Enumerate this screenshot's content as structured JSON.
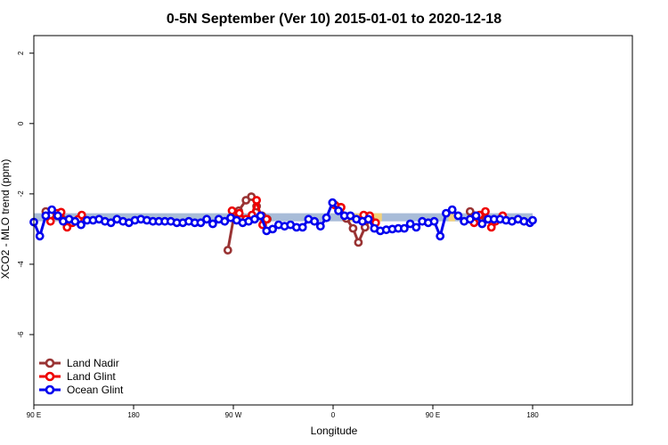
{
  "chart_data": {
    "type": "line",
    "title": "0-5N September (Ver 10)   2015-01-01 to 2020-12-18",
    "xlabel": "Longitude",
    "ylabel": "XCO2 - MLO trend (ppm)",
    "xlim": [
      -90,
      180
    ],
    "ylim": [
      -8,
      2.5
    ],
    "x_ticks": [
      {
        "value": -90,
        "label": "90 E"
      },
      {
        "value": -45,
        "label": "180"
      },
      {
        "value": 0,
        "label": "90 W"
      },
      {
        "value": 45,
        "label": "0"
      },
      {
        "value": 90,
        "label": "90 E"
      },
      {
        "value": 135,
        "label": "180"
      }
    ],
    "y_ticks": [
      {
        "value": 2,
        "label": "2"
      },
      {
        "value": 0,
        "label": "0"
      },
      {
        "value": -2,
        "label": "-2"
      },
      {
        "value": -4,
        "label": "-4"
      },
      {
        "value": -6,
        "label": "-6"
      }
    ],
    "grid": false,
    "legend_position": "bottom-left",
    "band": {
      "color": "#a8bcd8",
      "lower": -2.78,
      "upper": -2.55,
      "x": [
        -90,
        135
      ]
    },
    "highlights": [
      {
        "color": "#f3d27a",
        "x": [
          0,
          3
        ],
        "lower": -2.78,
        "upper": -2.55
      },
      {
        "color": "#f3d27a",
        "x": [
          52,
          67
        ],
        "lower": -2.78,
        "upper": -2.55
      },
      {
        "color": "#f3d27a",
        "x": [
          97,
          100
        ],
        "lower": -2.78,
        "upper": -2.55
      }
    ],
    "series": [
      {
        "name": "Land Nadir",
        "color": "#993333",
        "segments": [
          [
            [
              -84.6,
              -2.5
            ],
            [
              -82.5,
              -2.6
            ],
            [
              -79.5,
              -2.62
            ],
            [
              -77.1,
              -2.72
            ]
          ],
          [
            [
              -2.5,
              -3.6
            ],
            [
              0.6,
              -2.52
            ],
            [
              2.4,
              -2.48
            ],
            [
              5.7,
              -2.18
            ],
            [
              8.1,
              -2.08
            ],
            [
              10.5,
              -2.35
            ],
            [
              12.9,
              -2.62
            ],
            [
              15.3,
              -2.72
            ]
          ],
          [
            [
              48.3,
              -2.38
            ],
            [
              51.0,
              -2.7
            ],
            [
              54.0,
              -2.98
            ],
            [
              56.4,
              -3.38
            ],
            [
              59.4,
              -2.95
            ],
            [
              61.8,
              -2.72
            ]
          ],
          [
            [
              106.8,
              -2.5
            ],
            [
              108.9,
              -2.62
            ],
            [
              111.6,
              -2.6
            ],
            [
              114.0,
              -2.72
            ]
          ]
        ]
      },
      {
        "name": "Land Glint",
        "color": "#ee0000",
        "segments": [
          [
            [
              -82.5,
              -2.78
            ],
            [
              -79.5,
              -2.55
            ],
            [
              -77.7,
              -2.52
            ],
            [
              -75.0,
              -2.95
            ],
            [
              -72.6,
              -2.82
            ],
            [
              -69.9,
              -2.72
            ],
            [
              -68.4,
              -2.6
            ]
          ],
          [
            [
              -0.6,
              -2.48
            ],
            [
              2.7,
              -2.55
            ],
            [
              5.7,
              -2.72
            ],
            [
              8.4,
              -2.6
            ],
            [
              10.5,
              -2.18
            ],
            [
              13.2,
              -2.88
            ],
            [
              15.0,
              -2.72
            ]
          ],
          [
            [
              45.9,
              -2.32
            ],
            [
              48.6,
              -2.38
            ]
          ],
          [
            [
              58.8,
              -2.6
            ],
            [
              61.5,
              -2.62
            ],
            [
              64.2,
              -2.82
            ]
          ],
          [
            [
              108.6,
              -2.82
            ],
            [
              111.0,
              -2.6
            ],
            [
              113.7,
              -2.5
            ],
            [
              116.4,
              -2.95
            ],
            [
              118.2,
              -2.78
            ],
            [
              121.5,
              -2.62
            ]
          ]
        ]
      },
      {
        "name": "Ocean Glint",
        "color": "#0000ee",
        "segments": [
          [
            [
              -90.0,
              -2.8
            ],
            [
              -87.3,
              -3.2
            ],
            [
              -84.6,
              -2.62
            ],
            [
              -81.9,
              -2.45
            ],
            [
              -79.2,
              -2.62
            ],
            [
              -76.8,
              -2.78
            ],
            [
              -74.1,
              -2.72
            ],
            [
              -71.4,
              -2.78
            ],
            [
              -68.7,
              -2.88
            ],
            [
              -66.0,
              -2.75
            ],
            [
              -63.3,
              -2.75
            ],
            [
              -60.6,
              -2.72
            ],
            [
              -57.9,
              -2.78
            ],
            [
              -55.2,
              -2.82
            ],
            [
              -52.5,
              -2.72
            ],
            [
              -49.8,
              -2.78
            ],
            [
              -47.1,
              -2.82
            ],
            [
              -44.4,
              -2.75
            ],
            [
              -41.7,
              -2.72
            ],
            [
              -39.0,
              -2.75
            ],
            [
              -36.3,
              -2.78
            ],
            [
              -33.6,
              -2.78
            ],
            [
              -30.9,
              -2.78
            ],
            [
              -28.2,
              -2.78
            ],
            [
              -25.5,
              -2.82
            ],
            [
              -22.8,
              -2.82
            ],
            [
              -20.1,
              -2.78
            ],
            [
              -17.4,
              -2.82
            ],
            [
              -14.7,
              -2.82
            ],
            [
              -12.0,
              -2.72
            ],
            [
              -9.3,
              -2.85
            ],
            [
              -6.6,
              -2.72
            ],
            [
              -3.9,
              -2.78
            ],
            [
              -1.2,
              -2.68
            ],
            [
              1.5,
              -2.75
            ],
            [
              4.2,
              -2.82
            ],
            [
              6.9,
              -2.78
            ],
            [
              9.6,
              -2.72
            ],
            [
              12.3,
              -2.62
            ],
            [
              15.0,
              -3.05
            ],
            [
              17.7,
              -3.0
            ],
            [
              20.4,
              -2.88
            ],
            [
              23.1,
              -2.92
            ],
            [
              25.8,
              -2.88
            ],
            [
              28.5,
              -2.95
            ],
            [
              31.2,
              -2.95
            ],
            [
              33.9,
              -2.72
            ],
            [
              36.6,
              -2.78
            ],
            [
              39.3,
              -2.92
            ],
            [
              42.0,
              -2.68
            ],
            [
              44.7,
              -2.25
            ],
            [
              47.4,
              -2.48
            ],
            [
              50.1,
              -2.62
            ],
            [
              52.8,
              -2.62
            ],
            [
              55.5,
              -2.72
            ],
            [
              58.2,
              -2.78
            ],
            [
              60.9,
              -2.72
            ],
            [
              63.6,
              -2.98
            ],
            [
              66.3,
              -3.05
            ],
            [
              69.0,
              -3.02
            ],
            [
              71.7,
              -3.0
            ],
            [
              74.4,
              -2.98
            ],
            [
              77.1,
              -2.98
            ],
            [
              79.8,
              -2.85
            ],
            [
              82.5,
              -2.95
            ],
            [
              85.2,
              -2.78
            ],
            [
              87.9,
              -2.82
            ],
            [
              90.6,
              -2.78
            ],
            [
              93.3,
              -3.2
            ],
            [
              96.0,
              -2.55
            ],
            [
              98.7,
              -2.45
            ],
            [
              101.4,
              -2.62
            ],
            [
              104.1,
              -2.78
            ],
            [
              106.8,
              -2.72
            ],
            [
              109.5,
              -2.62
            ],
            [
              112.2,
              -2.85
            ],
            [
              114.9,
              -2.72
            ],
            [
              117.6,
              -2.72
            ],
            [
              120.3,
              -2.72
            ],
            [
              123.0,
              -2.75
            ],
            [
              125.7,
              -2.78
            ],
            [
              128.4,
              -2.72
            ],
            [
              131.1,
              -2.78
            ],
            [
              133.8,
              -2.82
            ],
            [
              135.0,
              -2.75
            ]
          ]
        ]
      }
    ]
  }
}
